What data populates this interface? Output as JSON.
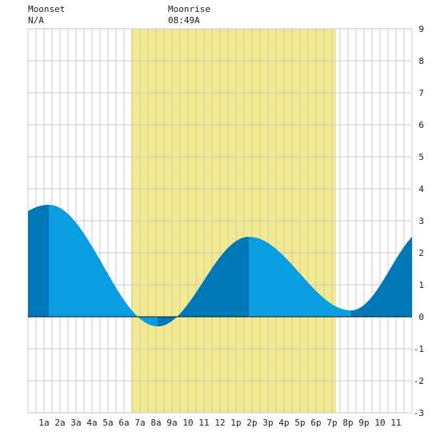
{
  "header": {
    "moonset": {
      "label": "Moonset",
      "time": "N/A"
    },
    "moonrise": {
      "label": "Moonrise",
      "time": "08:49A"
    }
  },
  "colors": {
    "plot_background": "#ffffff",
    "grid": "#c8c8c8",
    "daylight_band": "#f2ea8c",
    "tide_fill_light": "#0a9ee0",
    "tide_fill_dark": "#0077b6",
    "zero_line": "#1a1a1a"
  },
  "chart_data": {
    "type": "area",
    "title": "",
    "xlabel": "",
    "ylabel": "",
    "x_tick_labels": [
      "1a",
      "2a",
      "3a",
      "4a",
      "5a",
      "6a",
      "7a",
      "8a",
      "9a",
      "10",
      "11",
      "12",
      "1p",
      "2p",
      "3p",
      "4p",
      "5p",
      "6p",
      "7p",
      "8p",
      "9p",
      "10",
      "11"
    ],
    "x_tick_hours": [
      1,
      2,
      3,
      4,
      5,
      6,
      7,
      8,
      9,
      10,
      11,
      12,
      13,
      14,
      15,
      16,
      17,
      18,
      19,
      20,
      21,
      22,
      23
    ],
    "xlim": [
      0,
      24
    ],
    "ylim": [
      -3,
      9
    ],
    "y_ticks": [
      -3,
      -2,
      -1,
      0,
      1,
      2,
      3,
      4,
      5,
      6,
      7,
      8,
      9
    ],
    "y_axis_side": "right",
    "grid": true,
    "daylight_band_hours": [
      6.45,
      19.25
    ],
    "extremes": [
      {
        "hour": 1.3,
        "height": 3.5,
        "kind": "high"
      },
      {
        "hour": 8.1,
        "height": -0.3,
        "kind": "low"
      },
      {
        "hour": 13.8,
        "height": 2.5,
        "kind": "high"
      },
      {
        "hour": 20.2,
        "height": 0.2,
        "kind": "low"
      }
    ],
    "start_height": 3.3,
    "end_height": 2.5,
    "shading_boundaries_hours": [
      1.3,
      8.1,
      13.8,
      20.2
    ]
  }
}
